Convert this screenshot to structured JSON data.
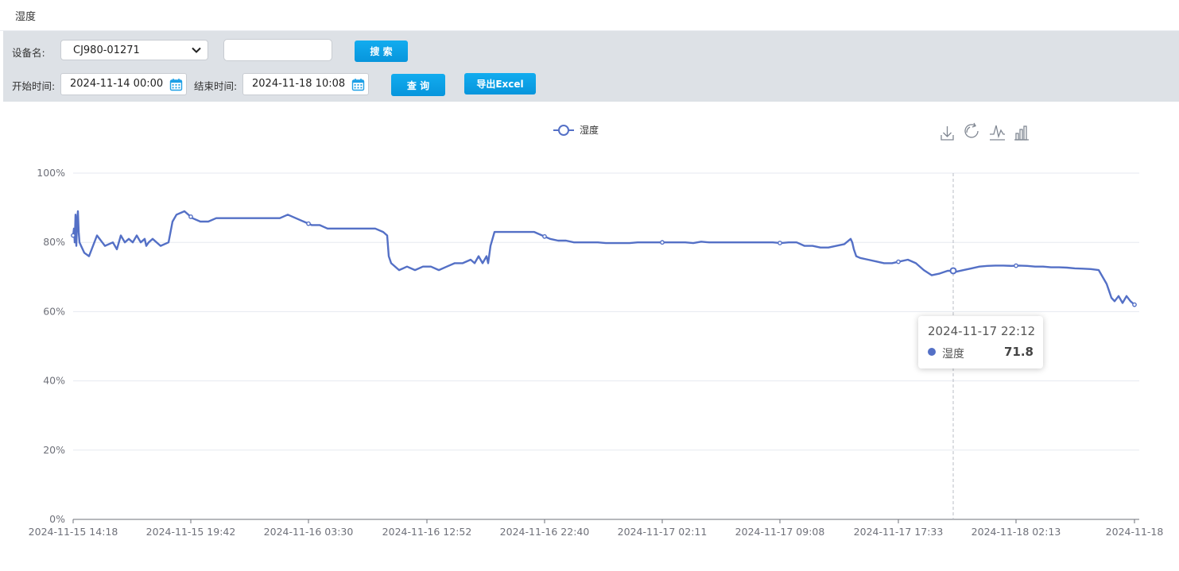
{
  "page": {
    "title": "湿度"
  },
  "filters": {
    "device_label": "设备名:",
    "device_value": "CJ980-01271",
    "search_value": "",
    "search_button": "搜 索",
    "start_label": "开始时间:",
    "start_value": "2024-11-14 00:00",
    "end_label": "结束时间:",
    "end_value": "2024-11-18 10:08",
    "query_button": "查 询",
    "export_button": "导出Excel"
  },
  "toolbox": [
    "download-icon",
    "restore-icon",
    "line-chart-icon",
    "bar-chart-icon"
  ],
  "tooltip": {
    "time": "2024-11-17 22:12",
    "series": "湿度",
    "value": "71.8"
  },
  "colors": {
    "series": "#5470c6",
    "accent": "#0ea5e9"
  },
  "chart_data": {
    "type": "line",
    "title": "",
    "legend": [
      "湿度"
    ],
    "legend_position": "top-center",
    "series": [
      {
        "name": "湿度",
        "x": [
          0,
          1,
          2,
          3,
          4,
          5,
          6,
          7,
          8,
          10,
          14,
          20,
          30,
          40,
          50,
          55,
          60,
          65,
          70,
          75,
          80,
          85,
          90,
          92,
          95,
          100,
          110,
          120,
          125,
          130,
          140,
          150,
          160,
          170,
          180,
          190,
          200,
          210,
          220,
          230,
          240,
          250,
          260,
          270,
          280,
          290,
          300,
          310,
          320,
          330,
          340,
          350,
          360,
          370,
          380,
          390,
          395,
          397,
          400,
          410,
          420,
          430,
          440,
          450,
          460,
          470,
          480,
          490,
          500,
          505,
          510,
          515,
          520,
          522,
          525,
          530,
          540,
          550,
          560,
          570,
          580,
          590,
          600,
          610,
          620,
          630,
          640,
          650,
          660,
          670,
          680,
          690,
          700,
          710,
          720,
          730,
          740,
          750,
          760,
          770,
          780,
          790,
          800,
          810,
          820,
          830,
          840,
          850,
          860,
          870,
          880,
          890,
          900,
          910,
          920,
          930,
          940,
          950,
          960,
          970,
          978,
          980,
          982,
          985,
          990,
          1000,
          1010,
          1020,
          1030,
          1040,
          1050,
          1060,
          1070,
          1080,
          1090,
          1100,
          1107,
          1110,
          1120,
          1130,
          1140,
          1150,
          1160,
          1170,
          1180,
          1190,
          1200,
          1210,
          1220,
          1230,
          1240,
          1250,
          1260,
          1270,
          1280,
          1290,
          1300,
          1303,
          1306,
          1310,
          1315,
          1320,
          1325,
          1330,
          1335
        ],
        "values": [
          82,
          84,
          80,
          88,
          79,
          86,
          89,
          83,
          80,
          79,
          77,
          76,
          82,
          79,
          80,
          78,
          82,
          80,
          81,
          80,
          82,
          80,
          81,
          79,
          80,
          81,
          79,
          80,
          86,
          88,
          89,
          87,
          86,
          86,
          87,
          87,
          87,
          87,
          87,
          87,
          87,
          87,
          87,
          88,
          87,
          86,
          85,
          85,
          84,
          84,
          84,
          84,
          84,
          84,
          84,
          83,
          82,
          76,
          74,
          72,
          73,
          72,
          73,
          73,
          72,
          73,
          74,
          74,
          75,
          74,
          76,
          74,
          76,
          74,
          79,
          83,
          83,
          83,
          83,
          83,
          83,
          82,
          81,
          80.5,
          80.5,
          80,
          80,
          80,
          80,
          79.8,
          79.8,
          79.8,
          79.8,
          80,
          80,
          80,
          80,
          80,
          80,
          80,
          79.8,
          80.2,
          80,
          80,
          80,
          80,
          80,
          80,
          80,
          80,
          80,
          79.8,
          80,
          80,
          79,
          79,
          78.5,
          78.5,
          79,
          79.5,
          81,
          80,
          78,
          76,
          75.5,
          75,
          74.5,
          74,
          74,
          74.5,
          75,
          74,
          72,
          70.5,
          71,
          71.8,
          71.8,
          71.5,
          72,
          72.5,
          73,
          73.2,
          73.3,
          73.3,
          73.2,
          73.3,
          73.2,
          73,
          73,
          72.8,
          72.8,
          72.7,
          72.5,
          72.4,
          72.3,
          72,
          68,
          66,
          64,
          63,
          64.5,
          62.5,
          64.5,
          63,
          62
        ]
      }
    ],
    "x_domain": [
      0,
      1335
    ],
    "x_tick_labels": [
      "2024-11-15 14:18",
      "2024-11-15 19:42",
      "2024-11-16 03:30",
      "2024-11-16 12:52",
      "2024-11-16 22:40",
      "2024-11-17 02:11",
      "2024-11-17 09:08",
      "2024-11-17 17:33",
      "2024-11-18 02:13",
      "2024-11-18"
    ],
    "x_tick_values": [
      0,
      148,
      296,
      445,
      593,
      741,
      889,
      1038,
      1186,
      1335
    ],
    "y_tick_labels": [
      "0%",
      "20%",
      "40%",
      "60%",
      "80%",
      "100%"
    ],
    "y_tick_values": [
      0,
      20,
      40,
      60,
      80,
      100
    ],
    "ylim": [
      0,
      100
    ],
    "marker_x": [
      0,
      148,
      296,
      593,
      741,
      889,
      1038,
      1107,
      1186,
      1335
    ],
    "crosshair_x": 1107,
    "grid": true,
    "xlabel": "",
    "ylabel": ""
  }
}
